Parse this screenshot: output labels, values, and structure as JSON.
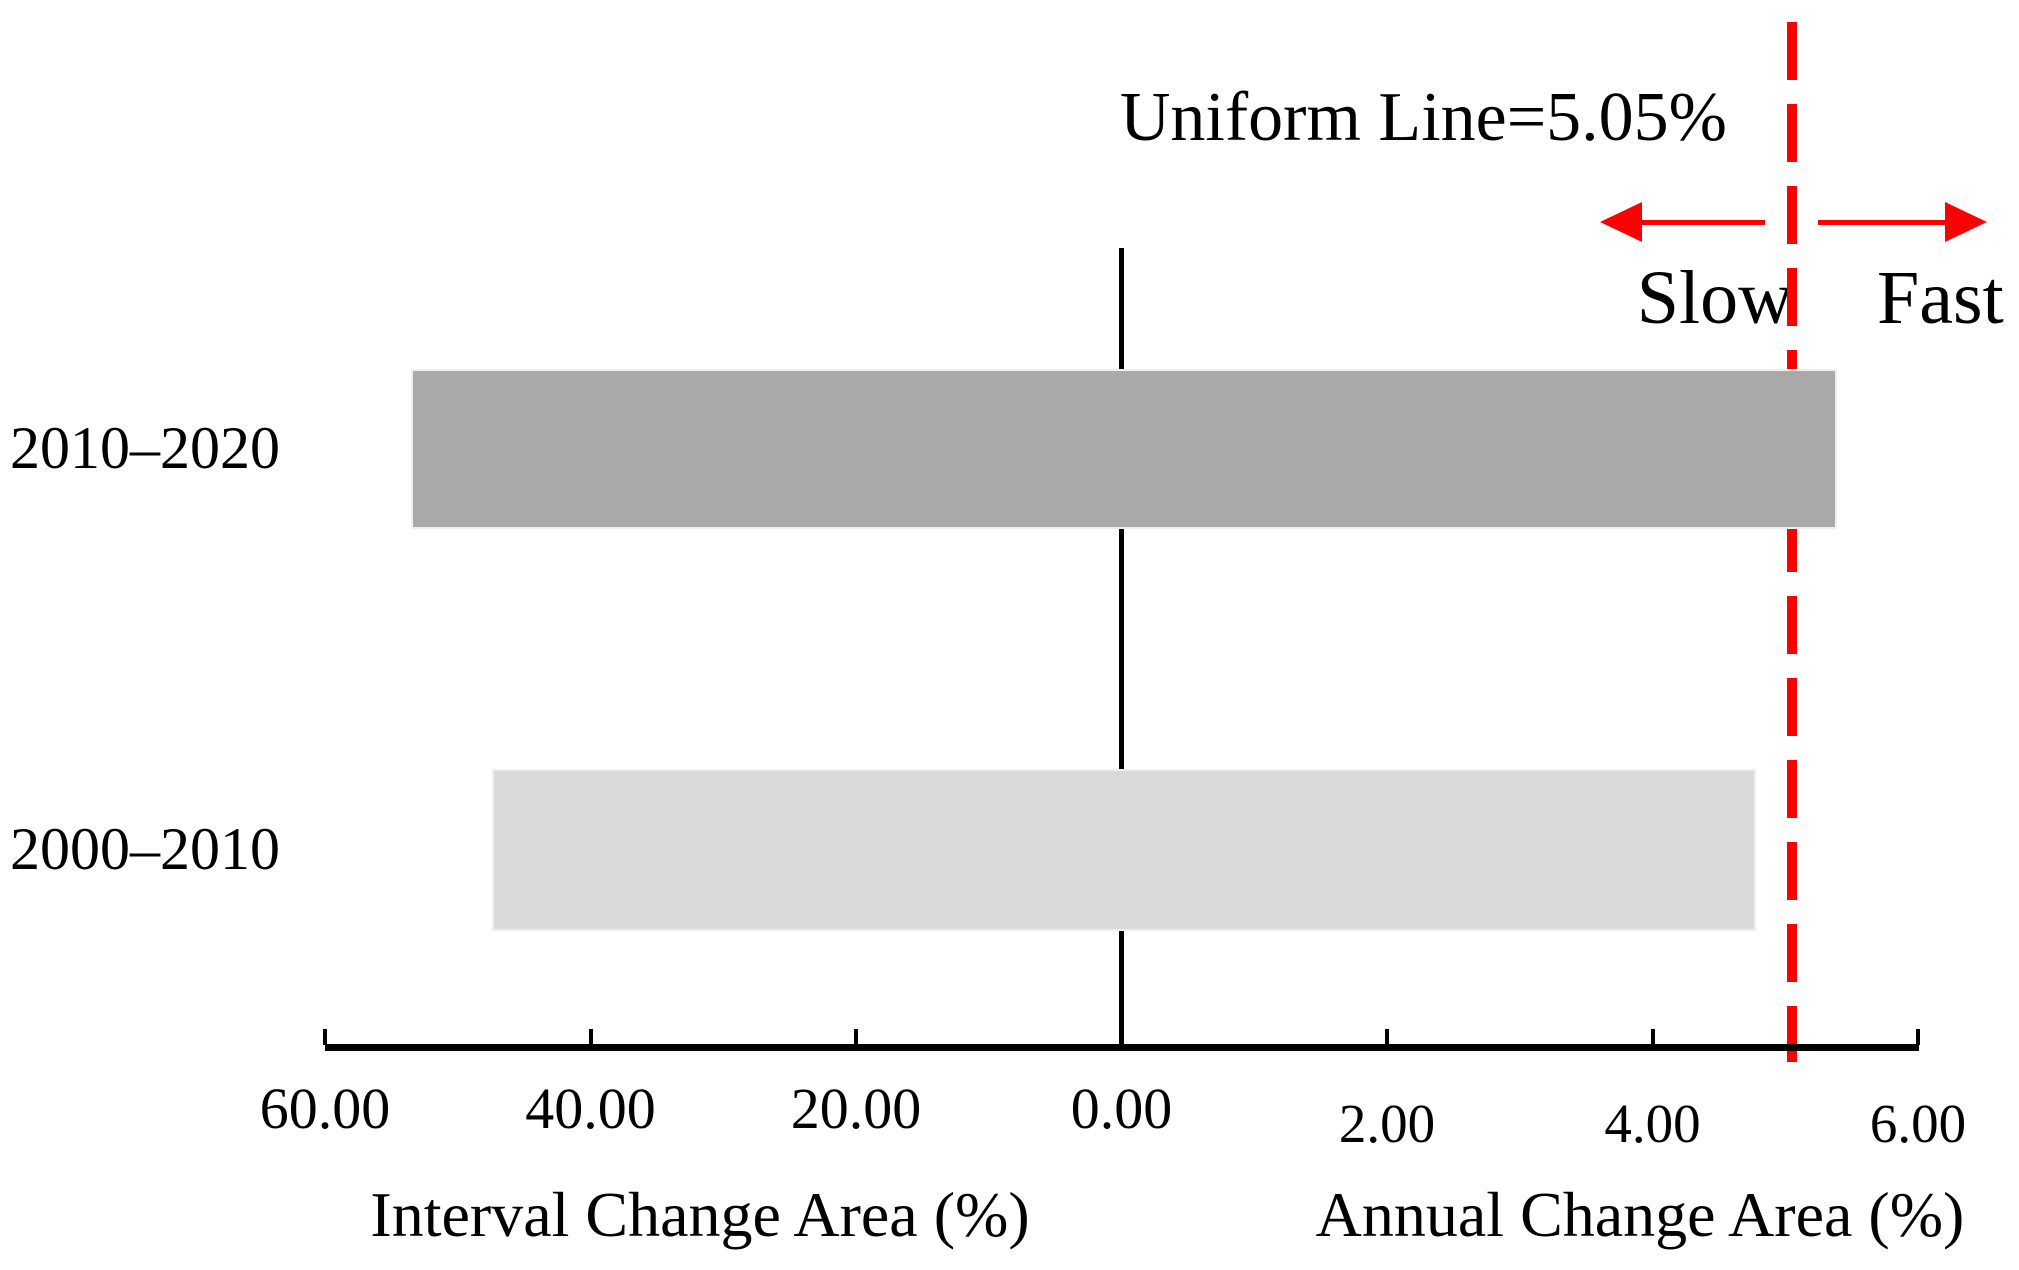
{
  "chart_data": {
    "type": "bar",
    "orientation": "horizontal-diverging",
    "description": "Back-to-back horizontal bar chart with dual-unit x axis; left half shows interval change, right half annual change",
    "grid": false,
    "legend": false,
    "left_axis": {
      "label": "Interval Change Area (%)",
      "max": 60,
      "ticks": [
        {
          "value": 60,
          "label": "60.00"
        },
        {
          "value": 40,
          "label": "40.00"
        },
        {
          "value": 20,
          "label": "20.00"
        },
        {
          "value": 0,
          "label": "0.00"
        }
      ]
    },
    "right_axis": {
      "label": "Annual Change Area (%)",
      "max": 6,
      "ticks": [
        {
          "value": 2,
          "label": "2.00"
        },
        {
          "value": 4,
          "label": "4.00"
        },
        {
          "value": 6,
          "label": "6.00"
        }
      ]
    },
    "rows": [
      {
        "label": "2010–2020",
        "interval_change_pct": 53.5,
        "annual_change_pct": 5.39,
        "color": "#a9a9a9"
      },
      {
        "label": "2000–2010",
        "interval_change_pct": 47.4,
        "annual_change_pct": 4.78,
        "color": "#d9d9d9"
      }
    ],
    "uniform_line": {
      "value": 5.05,
      "label": "Uniform Line=5.05%",
      "color": "#fa0000"
    },
    "annotations": {
      "slow": "Slow",
      "fast": "Fast"
    },
    "axis_color": "#000000"
  }
}
